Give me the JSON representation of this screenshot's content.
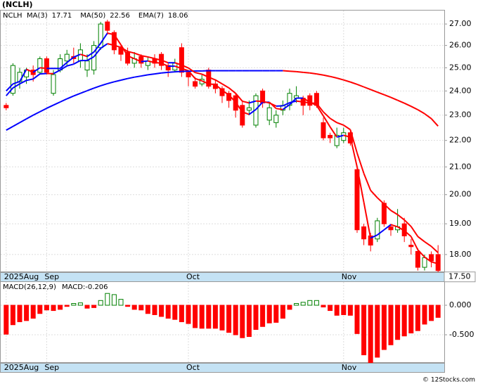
{
  "chart_data": [
    {
      "type": "candlestick",
      "title": "(NCLH)",
      "symbol": "NCLH",
      "categories": [
        "2025Aug",
        null,
        null,
        null,
        null,
        null,
        "Sep",
        null,
        null,
        null,
        null,
        null,
        null,
        null,
        null,
        null,
        null,
        null,
        null,
        null,
        null,
        null,
        null,
        null,
        null,
        null,
        null,
        "Oct",
        null,
        null,
        null,
        null,
        null,
        null,
        null,
        null,
        null,
        null,
        null,
        null,
        null,
        null,
        null,
        null,
        null,
        null,
        null,
        null,
        null,
        null,
        "Nov",
        null,
        null,
        null,
        null,
        null,
        null,
        null,
        null,
        null,
        null,
        null,
        null,
        null,
        null
      ],
      "open": [
        23.4,
        23.9,
        24.4,
        24.6,
        24.9,
        24.8,
        25.4,
        23.9,
        24.9,
        25.3,
        25.5,
        25.3,
        24.9,
        24.9,
        25.9,
        27.1,
        26.6,
        25.9,
        25.7,
        25.2,
        25.5,
        25.1,
        25.4,
        25.6,
        25.1,
        24.9,
        25.9,
        24.8,
        24.4,
        24.3,
        24.9,
        24.3,
        24.1,
        23.9,
        23.8,
        23.4,
        23.2,
        22.6,
        24.0,
        22.8,
        22.7,
        23.2,
        23.4,
        23.7,
        23.7,
        23.8,
        23.9,
        22.7,
        22.2,
        21.8,
        22.0,
        22.3,
        20.9,
        18.9,
        18.6,
        18.5,
        19.7,
        18.9,
        18.8,
        19.0,
        18.3,
        18.1,
        17.6,
        18.0,
        18.0
      ],
      "high": [
        23.5,
        25.2,
        25.0,
        25.0,
        25.1,
        25.5,
        25.5,
        24.9,
        25.6,
        25.8,
        25.9,
        26.1,
        25.6,
        26.2,
        27.1,
        27.2,
        26.7,
        26.0,
        25.9,
        25.7,
        25.6,
        25.5,
        25.6,
        25.7,
        25.2,
        25.4,
        26.1,
        24.9,
        24.6,
        24.7,
        25.0,
        24.5,
        24.2,
        24.0,
        23.9,
        23.6,
        23.6,
        23.9,
        24.1,
        23.5,
        23.2,
        23.6,
        24.1,
        24.2,
        23.8,
        23.9,
        24.0,
        22.9,
        22.3,
        22.5,
        22.5,
        22.4,
        21.0,
        19.0,
        18.7,
        19.2,
        19.8,
        19.0,
        19.5,
        19.2,
        18.5,
        18.2,
        18.0,
        18.1,
        18.3
      ],
      "low": [
        23.2,
        23.8,
        24.1,
        24.3,
        24.4,
        24.7,
        24.7,
        23.8,
        24.8,
        25.1,
        25.2,
        25.0,
        24.6,
        24.7,
        25.8,
        26.5,
        25.6,
        25.3,
        25.1,
        25.0,
        25.0,
        24.9,
        25.0,
        24.9,
        24.6,
        24.8,
        24.6,
        24.2,
        24.1,
        24.2,
        24.1,
        23.9,
        23.5,
        23.3,
        22.9,
        22.5,
        23.0,
        22.5,
        23.3,
        22.6,
        22.5,
        23.0,
        23.2,
        23.5,
        23.0,
        23.2,
        23.3,
        22.0,
        21.9,
        21.7,
        21.9,
        21.8,
        18.7,
        18.3,
        18.1,
        18.4,
        18.9,
        18.6,
        18.7,
        18.4,
        18.0,
        17.5,
        17.5,
        17.6,
        17.45
      ],
      "close": [
        23.3,
        25.1,
        24.8,
        24.9,
        24.7,
        25.4,
        24.8,
        24.7,
        25.4,
        25.6,
        25.4,
        25.8,
        25.3,
        26.0,
        27.0,
        26.7,
        25.8,
        25.6,
        25.2,
        25.4,
        25.2,
        25.3,
        25.2,
        25.1,
        24.9,
        25.2,
        24.8,
        24.6,
        24.2,
        24.5,
        24.2,
        24.1,
        23.8,
        23.6,
        23.2,
        22.6,
        23.3,
        23.8,
        23.5,
        23.3,
        23.0,
        23.4,
        23.9,
        23.8,
        23.4,
        23.4,
        23.4,
        22.1,
        22.1,
        22.2,
        22.3,
        21.9,
        18.8,
        18.5,
        18.3,
        19.1,
        19.0,
        18.8,
        18.9,
        18.6,
        18.25,
        17.6,
        17.9,
        17.8,
        17.5
      ],
      "up_color": "#008000",
      "down_color": "#ff0000",
      "line_colors": {
        "up": "#0000ff",
        "down": "#ff0000"
      },
      "series": [
        {
          "name": "MA(3)",
          "values": [
            24.0,
            24.3,
            24.4,
            24.93,
            24.8,
            25.0,
            24.97,
            24.97,
            24.97,
            25.23,
            25.47,
            25.6,
            25.5,
            25.7,
            26.1,
            26.57,
            26.5,
            26.03,
            25.53,
            25.4,
            25.27,
            25.3,
            25.23,
            25.2,
            25.07,
            25.07,
            24.97,
            24.87,
            24.53,
            24.43,
            24.3,
            24.27,
            24.03,
            23.83,
            23.53,
            23.13,
            23.03,
            23.23,
            23.53,
            23.53,
            23.27,
            23.23,
            23.43,
            23.7,
            23.7,
            23.53,
            23.4,
            22.97,
            22.53,
            22.13,
            22.2,
            22.13,
            21.0,
            19.73,
            18.53,
            18.63,
            18.8,
            18.97,
            18.9,
            18.77,
            18.58,
            18.15,
            17.92,
            17.77,
            17.71
          ]
        },
        {
          "name": "MA(50)",
          "values": [
            22.4,
            22.55,
            22.7,
            22.85,
            23.0,
            23.14,
            23.28,
            23.41,
            23.54,
            23.67,
            23.79,
            23.9,
            24.01,
            24.12,
            24.22,
            24.31,
            24.39,
            24.46,
            24.53,
            24.59,
            24.64,
            24.69,
            24.73,
            24.77,
            24.8,
            24.82,
            24.84,
            24.85,
            24.86,
            24.86,
            24.87,
            24.87,
            24.87,
            24.87,
            24.87,
            24.87,
            24.87,
            24.87,
            24.87,
            24.87,
            24.87,
            24.87,
            24.85,
            24.83,
            24.8,
            24.77,
            24.73,
            24.68,
            24.62,
            24.55,
            24.47,
            24.38,
            24.28,
            24.17,
            24.06,
            23.95,
            23.84,
            23.73,
            23.61,
            23.49,
            23.36,
            23.22,
            23.06,
            22.86,
            22.56
          ]
        },
        {
          "name": "EMA(7)",
          "values": [
            23.8,
            24.13,
            24.3,
            24.45,
            24.51,
            24.73,
            24.75,
            24.74,
            24.9,
            25.08,
            25.16,
            25.32,
            25.32,
            25.49,
            25.87,
            26.08,
            26.01,
            25.91,
            25.73,
            25.65,
            25.54,
            25.48,
            25.41,
            25.33,
            25.22,
            25.22,
            25.12,
            24.99,
            24.79,
            24.72,
            24.59,
            24.47,
            24.3,
            24.13,
            23.9,
            23.57,
            23.5,
            23.58,
            23.56,
            23.5,
            23.37,
            23.38,
            23.51,
            23.58,
            23.54,
            23.5,
            23.48,
            23.13,
            22.87,
            22.7,
            22.6,
            22.42,
            21.52,
            20.76,
            20.15,
            19.89,
            19.67,
            19.45,
            19.31,
            19.13,
            18.91,
            18.58,
            18.41,
            18.26,
            18.06
          ]
        }
      ],
      "last_price": {
        "value": 17.5,
        "label": "17.50"
      },
      "log_scale": true,
      "grid": true,
      "ylim": [
        17.45,
        27.68
      ],
      "yticks": [
        {
          "value": 18,
          "label": "18.00"
        },
        {
          "value": 19,
          "label": "19.00"
        },
        {
          "value": 20,
          "label": "20.00"
        },
        {
          "value": 21,
          "label": "21.00"
        },
        {
          "value": 22,
          "label": "22.00"
        },
        {
          "value": 23,
          "label": "23.00"
        },
        {
          "value": 24,
          "label": "24.00"
        },
        {
          "value": 25,
          "label": "25.00"
        },
        {
          "value": 26,
          "label": "26.00"
        },
        {
          "value": 27,
          "label": "27.00"
        }
      ]
    },
    {
      "type": "bar",
      "title": "MACD(26,12,9)",
      "legend_label": "MACD:-0.206",
      "categories": [
        "2025Aug",
        null,
        null,
        null,
        null,
        null,
        "Sep",
        null,
        null,
        null,
        null,
        null,
        null,
        null,
        null,
        null,
        null,
        null,
        null,
        null,
        null,
        null,
        null,
        null,
        null,
        null,
        null,
        "Oct",
        null,
        null,
        null,
        null,
        null,
        null,
        null,
        null,
        null,
        null,
        null,
        null,
        null,
        null,
        null,
        null,
        null,
        null,
        null,
        null,
        null,
        null,
        "Nov",
        null,
        null,
        null,
        null,
        null,
        null,
        null,
        null,
        null,
        null,
        null,
        null,
        null,
        null
      ],
      "values": [
        -0.49,
        -0.33,
        -0.28,
        -0.26,
        -0.22,
        -0.14,
        -0.08,
        -0.09,
        -0.07,
        -0.02,
        0.03,
        0.04,
        -0.05,
        -0.04,
        0.08,
        0.2,
        0.18,
        0.1,
        -0.02,
        -0.07,
        -0.08,
        -0.14,
        -0.16,
        -0.19,
        -0.22,
        -0.24,
        -0.28,
        -0.31,
        -0.38,
        -0.39,
        -0.39,
        -0.39,
        -0.42,
        -0.46,
        -0.5,
        -0.55,
        -0.53,
        -0.41,
        -0.36,
        -0.3,
        -0.29,
        -0.22,
        -0.07,
        0.03,
        0.05,
        0.08,
        0.08,
        -0.03,
        -0.09,
        -0.17,
        -0.16,
        -0.17,
        -0.48,
        -0.84,
        -0.97,
        -0.88,
        -0.75,
        -0.67,
        -0.58,
        -0.52,
        -0.47,
        -0.43,
        -0.32,
        -0.26,
        -0.206
      ],
      "up_color": "#008000",
      "down_color": "#ff0000",
      "legend_color": "#0000ff",
      "grid": true,
      "ylim": [
        -0.976,
        0.405
      ],
      "yticks": [
        {
          "value": 0,
          "label": "0.000"
        },
        {
          "value": -0.5,
          "label": "-0.500"
        }
      ]
    }
  ],
  "footer": "© 12Stocks.com"
}
